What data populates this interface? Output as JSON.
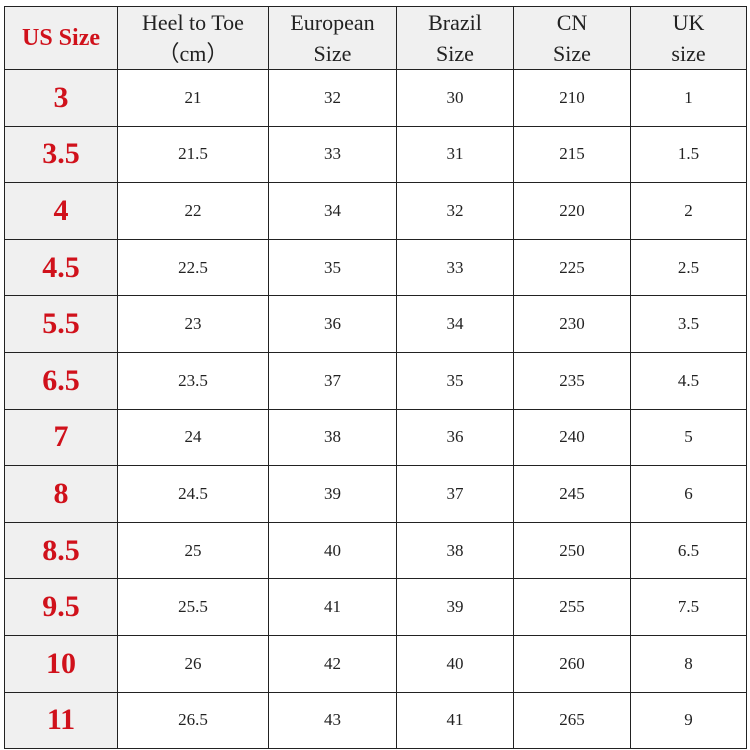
{
  "accent_color": "#d0111b",
  "headers": [
    {
      "line1": "US Size",
      "line2": ""
    },
    {
      "line1": "Heel to Toe",
      "line2": "（cm）"
    },
    {
      "line1": "European",
      "line2": "Size"
    },
    {
      "line1": "Brazil",
      "line2": "Size"
    },
    {
      "line1": "CN",
      "line2": "Size"
    },
    {
      "line1": "UK",
      "line2": "size"
    }
  ],
  "rows": [
    [
      "3",
      "21",
      "32",
      "30",
      "210",
      "1"
    ],
    [
      "3.5",
      "21.5",
      "33",
      "31",
      "215",
      "1.5"
    ],
    [
      "4",
      "22",
      "34",
      "32",
      "220",
      "2"
    ],
    [
      "4.5",
      "22.5",
      "35",
      "33",
      "225",
      "2.5"
    ],
    [
      "5.5",
      "23",
      "36",
      "34",
      "230",
      "3.5"
    ],
    [
      "6.5",
      "23.5",
      "37",
      "35",
      "235",
      "4.5"
    ],
    [
      "7",
      "24",
      "38",
      "36",
      "240",
      "5"
    ],
    [
      "8",
      "24.5",
      "39",
      "37",
      "245",
      "6"
    ],
    [
      "8.5",
      "25",
      "40",
      "38",
      "250",
      "6.5"
    ],
    [
      "9.5",
      "25.5",
      "41",
      "39",
      "255",
      "7.5"
    ],
    [
      "10",
      "26",
      "42",
      "40",
      "260",
      "8"
    ],
    [
      "11",
      "26.5",
      "43",
      "41",
      "265",
      "9"
    ]
  ]
}
